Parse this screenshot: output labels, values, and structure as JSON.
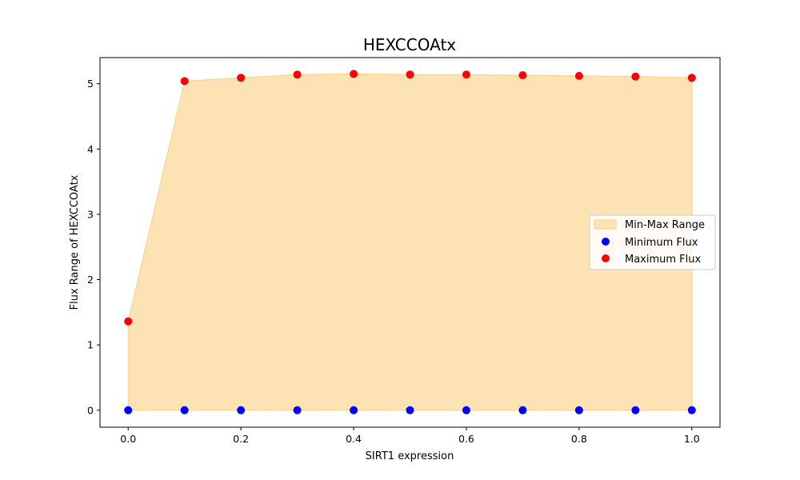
{
  "chart_data": {
    "type": "scatter",
    "title": "HEXCCOAtx",
    "xlabel": "SIRT1 expression",
    "ylabel": "Flux Range of HEXCCOAtx",
    "xlim": [
      -0.05,
      1.05
    ],
    "ylim": [
      -0.26,
      5.4
    ],
    "x_ticks": [
      0.0,
      0.2,
      0.4,
      0.6,
      0.8,
      1.0
    ],
    "x_tick_labels": [
      "0.0",
      "0.2",
      "0.4",
      "0.6",
      "0.8",
      "1.0"
    ],
    "y_ticks": [
      0,
      1,
      2,
      3,
      4,
      5
    ],
    "y_tick_labels": [
      "0",
      "1",
      "2",
      "3",
      "4",
      "5"
    ],
    "grid": false,
    "legend_position": "center-right",
    "x": [
      0.0,
      0.1,
      0.2,
      0.3,
      0.4,
      0.5,
      0.6,
      0.7,
      0.8,
      0.9,
      1.0
    ],
    "series": [
      {
        "name": "Min-Max Range",
        "kind": "fill_between",
        "color": "#fde3b3",
        "edge_color": "#f9cf86"
      },
      {
        "name": "Minimum Flux",
        "kind": "scatter",
        "color": "#0000ff",
        "values": [
          0,
          0,
          0,
          0,
          0,
          0,
          0,
          0,
          0,
          0,
          0
        ]
      },
      {
        "name": "Maximum Flux",
        "kind": "scatter",
        "color": "#ff0000",
        "values": [
          1.36,
          5.04,
          5.09,
          5.14,
          5.15,
          5.14,
          5.14,
          5.13,
          5.12,
          5.11,
          5.09
        ]
      }
    ]
  }
}
